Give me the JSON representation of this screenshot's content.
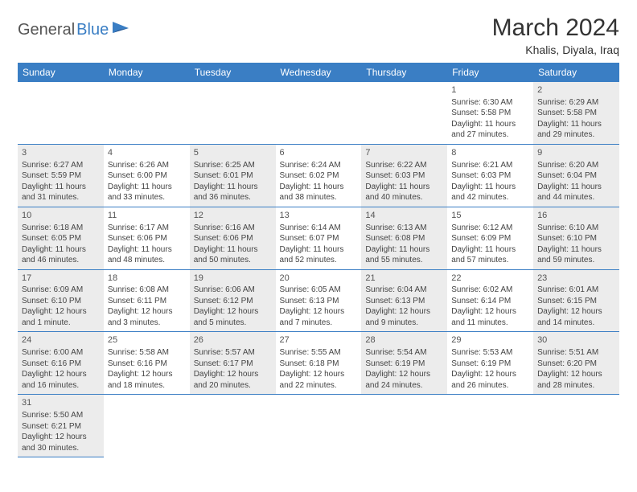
{
  "logo": {
    "text1": "General",
    "text2": "Blue"
  },
  "title": "March 2024",
  "location": "Khalis, Diyala, Iraq",
  "colors": {
    "header_bg": "#3a7ec4",
    "header_text": "#ffffff",
    "shaded_bg": "#ececec",
    "border": "#3a7ec4",
    "logo_gray": "#555555",
    "logo_blue": "#3a7ec4"
  },
  "day_headers": [
    "Sunday",
    "Monday",
    "Tuesday",
    "Wednesday",
    "Thursday",
    "Friday",
    "Saturday"
  ],
  "weeks": [
    [
      {
        "empty": true
      },
      {
        "empty": true
      },
      {
        "empty": true
      },
      {
        "empty": true
      },
      {
        "empty": true
      },
      {
        "day": "1",
        "shaded": false,
        "sunrise": "Sunrise: 6:30 AM",
        "sunset": "Sunset: 5:58 PM",
        "daylight1": "Daylight: 11 hours",
        "daylight2": "and 27 minutes."
      },
      {
        "day": "2",
        "shaded": true,
        "sunrise": "Sunrise: 6:29 AM",
        "sunset": "Sunset: 5:58 PM",
        "daylight1": "Daylight: 11 hours",
        "daylight2": "and 29 minutes."
      }
    ],
    [
      {
        "day": "3",
        "shaded": true,
        "sunrise": "Sunrise: 6:27 AM",
        "sunset": "Sunset: 5:59 PM",
        "daylight1": "Daylight: 11 hours",
        "daylight2": "and 31 minutes."
      },
      {
        "day": "4",
        "shaded": false,
        "sunrise": "Sunrise: 6:26 AM",
        "sunset": "Sunset: 6:00 PM",
        "daylight1": "Daylight: 11 hours",
        "daylight2": "and 33 minutes."
      },
      {
        "day": "5",
        "shaded": true,
        "sunrise": "Sunrise: 6:25 AM",
        "sunset": "Sunset: 6:01 PM",
        "daylight1": "Daylight: 11 hours",
        "daylight2": "and 36 minutes."
      },
      {
        "day": "6",
        "shaded": false,
        "sunrise": "Sunrise: 6:24 AM",
        "sunset": "Sunset: 6:02 PM",
        "daylight1": "Daylight: 11 hours",
        "daylight2": "and 38 minutes."
      },
      {
        "day": "7",
        "shaded": true,
        "sunrise": "Sunrise: 6:22 AM",
        "sunset": "Sunset: 6:03 PM",
        "daylight1": "Daylight: 11 hours",
        "daylight2": "and 40 minutes."
      },
      {
        "day": "8",
        "shaded": false,
        "sunrise": "Sunrise: 6:21 AM",
        "sunset": "Sunset: 6:03 PM",
        "daylight1": "Daylight: 11 hours",
        "daylight2": "and 42 minutes."
      },
      {
        "day": "9",
        "shaded": true,
        "sunrise": "Sunrise: 6:20 AM",
        "sunset": "Sunset: 6:04 PM",
        "daylight1": "Daylight: 11 hours",
        "daylight2": "and 44 minutes."
      }
    ],
    [
      {
        "day": "10",
        "shaded": true,
        "sunrise": "Sunrise: 6:18 AM",
        "sunset": "Sunset: 6:05 PM",
        "daylight1": "Daylight: 11 hours",
        "daylight2": "and 46 minutes."
      },
      {
        "day": "11",
        "shaded": false,
        "sunrise": "Sunrise: 6:17 AM",
        "sunset": "Sunset: 6:06 PM",
        "daylight1": "Daylight: 11 hours",
        "daylight2": "and 48 minutes."
      },
      {
        "day": "12",
        "shaded": true,
        "sunrise": "Sunrise: 6:16 AM",
        "sunset": "Sunset: 6:06 PM",
        "daylight1": "Daylight: 11 hours",
        "daylight2": "and 50 minutes."
      },
      {
        "day": "13",
        "shaded": false,
        "sunrise": "Sunrise: 6:14 AM",
        "sunset": "Sunset: 6:07 PM",
        "daylight1": "Daylight: 11 hours",
        "daylight2": "and 52 minutes."
      },
      {
        "day": "14",
        "shaded": true,
        "sunrise": "Sunrise: 6:13 AM",
        "sunset": "Sunset: 6:08 PM",
        "daylight1": "Daylight: 11 hours",
        "daylight2": "and 55 minutes."
      },
      {
        "day": "15",
        "shaded": false,
        "sunrise": "Sunrise: 6:12 AM",
        "sunset": "Sunset: 6:09 PM",
        "daylight1": "Daylight: 11 hours",
        "daylight2": "and 57 minutes."
      },
      {
        "day": "16",
        "shaded": true,
        "sunrise": "Sunrise: 6:10 AM",
        "sunset": "Sunset: 6:10 PM",
        "daylight1": "Daylight: 11 hours",
        "daylight2": "and 59 minutes."
      }
    ],
    [
      {
        "day": "17",
        "shaded": true,
        "sunrise": "Sunrise: 6:09 AM",
        "sunset": "Sunset: 6:10 PM",
        "daylight1": "Daylight: 12 hours",
        "daylight2": "and 1 minute."
      },
      {
        "day": "18",
        "shaded": false,
        "sunrise": "Sunrise: 6:08 AM",
        "sunset": "Sunset: 6:11 PM",
        "daylight1": "Daylight: 12 hours",
        "daylight2": "and 3 minutes."
      },
      {
        "day": "19",
        "shaded": true,
        "sunrise": "Sunrise: 6:06 AM",
        "sunset": "Sunset: 6:12 PM",
        "daylight1": "Daylight: 12 hours",
        "daylight2": "and 5 minutes."
      },
      {
        "day": "20",
        "shaded": false,
        "sunrise": "Sunrise: 6:05 AM",
        "sunset": "Sunset: 6:13 PM",
        "daylight1": "Daylight: 12 hours",
        "daylight2": "and 7 minutes."
      },
      {
        "day": "21",
        "shaded": true,
        "sunrise": "Sunrise: 6:04 AM",
        "sunset": "Sunset: 6:13 PM",
        "daylight1": "Daylight: 12 hours",
        "daylight2": "and 9 minutes."
      },
      {
        "day": "22",
        "shaded": false,
        "sunrise": "Sunrise: 6:02 AM",
        "sunset": "Sunset: 6:14 PM",
        "daylight1": "Daylight: 12 hours",
        "daylight2": "and 11 minutes."
      },
      {
        "day": "23",
        "shaded": true,
        "sunrise": "Sunrise: 6:01 AM",
        "sunset": "Sunset: 6:15 PM",
        "daylight1": "Daylight: 12 hours",
        "daylight2": "and 14 minutes."
      }
    ],
    [
      {
        "day": "24",
        "shaded": true,
        "sunrise": "Sunrise: 6:00 AM",
        "sunset": "Sunset: 6:16 PM",
        "daylight1": "Daylight: 12 hours",
        "daylight2": "and 16 minutes."
      },
      {
        "day": "25",
        "shaded": false,
        "sunrise": "Sunrise: 5:58 AM",
        "sunset": "Sunset: 6:16 PM",
        "daylight1": "Daylight: 12 hours",
        "daylight2": "and 18 minutes."
      },
      {
        "day": "26",
        "shaded": true,
        "sunrise": "Sunrise: 5:57 AM",
        "sunset": "Sunset: 6:17 PM",
        "daylight1": "Daylight: 12 hours",
        "daylight2": "and 20 minutes."
      },
      {
        "day": "27",
        "shaded": false,
        "sunrise": "Sunrise: 5:55 AM",
        "sunset": "Sunset: 6:18 PM",
        "daylight1": "Daylight: 12 hours",
        "daylight2": "and 22 minutes."
      },
      {
        "day": "28",
        "shaded": true,
        "sunrise": "Sunrise: 5:54 AM",
        "sunset": "Sunset: 6:19 PM",
        "daylight1": "Daylight: 12 hours",
        "daylight2": "and 24 minutes."
      },
      {
        "day": "29",
        "shaded": false,
        "sunrise": "Sunrise: 5:53 AM",
        "sunset": "Sunset: 6:19 PM",
        "daylight1": "Daylight: 12 hours",
        "daylight2": "and 26 minutes."
      },
      {
        "day": "30",
        "shaded": true,
        "sunrise": "Sunrise: 5:51 AM",
        "sunset": "Sunset: 6:20 PM",
        "daylight1": "Daylight: 12 hours",
        "daylight2": "and 28 minutes."
      }
    ],
    [
      {
        "day": "31",
        "shaded": true,
        "sunrise": "Sunrise: 5:50 AM",
        "sunset": "Sunset: 6:21 PM",
        "daylight1": "Daylight: 12 hours",
        "daylight2": "and 30 minutes."
      },
      {
        "empty": true
      },
      {
        "empty": true
      },
      {
        "empty": true
      },
      {
        "empty": true
      },
      {
        "empty": true
      },
      {
        "empty": true
      }
    ]
  ]
}
